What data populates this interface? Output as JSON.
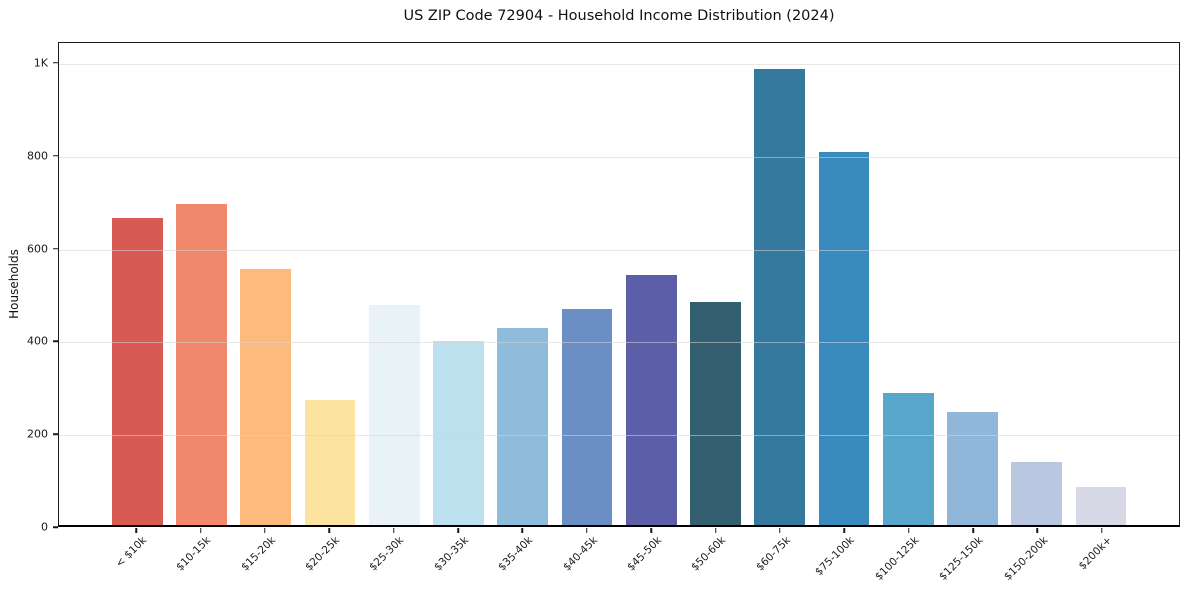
{
  "chart_data": {
    "type": "bar",
    "title": "US ZIP Code 72904 - Household Income Distribution (2024)",
    "xlabel": "",
    "ylabel": "Households",
    "categories": [
      "< $10k",
      "$10-15k",
      "$15-20k",
      "$20-25k",
      "$25-30k",
      "$30-35k",
      "$35-40k",
      "$40-45k",
      "$45-50k",
      "$50-60k",
      "$60-75k",
      "$75-100k",
      "$100-125k",
      "$125-150k",
      "$150-200k",
      "$200k+"
    ],
    "values": [
      665,
      695,
      555,
      271,
      477,
      398,
      427,
      468,
      542,
      483,
      989,
      808,
      287,
      246,
      136,
      82
    ],
    "bar_colors": [
      "#d85b53",
      "#f2886b",
      "#fcbb7d",
      "#fde3a0",
      "#e8f2f7",
      "#bce0ed",
      "#90bcdc",
      "#6b8fc5",
      "#5c5fa8",
      "#345f70",
      "#36799f",
      "#398bbd",
      "#58a6ca",
      "#90b6d9",
      "#b9c7e0",
      "#d8d9e6"
    ],
    "yticks": {
      "labels": [
        "0",
        "200",
        "400",
        "600",
        "800",
        "1K"
      ],
      "values": [
        0,
        200,
        400,
        600,
        800,
        1000
      ]
    },
    "ylim": [
      0,
      1045
    ],
    "grid": "horizontal",
    "grid_color": "#e9e9e9",
    "background": "#ffffff",
    "legend": "none"
  }
}
